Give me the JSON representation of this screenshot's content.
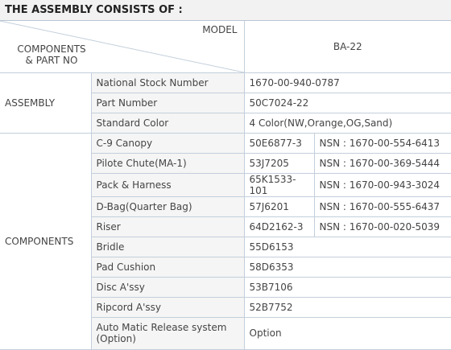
{
  "header": {
    "title": "THE ASSEMBLY CONSISTS OF :"
  },
  "table": {
    "model_label": "MODEL",
    "components_label": "COMPONENTS",
    "part_no_label": "& PART NO",
    "model": "BA-22",
    "groups": [
      {
        "name": "ASSEMBLY",
        "rows": [
          {
            "item": "National Stock Number",
            "value": "1670-00-940-0787"
          },
          {
            "item": "Part Number",
            "value": "50C7024-22"
          },
          {
            "item": "Standard Color",
            "value": "4 Color(NW,Orange,OG,Sand)"
          }
        ]
      },
      {
        "name": "COMPONENTS",
        "rows": [
          {
            "item": "C-9 Canopy",
            "value": "50E6877-3",
            "nsn": "NSN : 1670-00-554-6413"
          },
          {
            "item": "Pilote Chute(MA-1)",
            "value": "53J7205",
            "nsn": "NSN : 1670-00-369-5444"
          },
          {
            "item": "Pack & Harness",
            "value": "65K1533-101",
            "nsn": "NSN : 1670-00-943-3024"
          },
          {
            "item": "D-Bag(Quarter Bag)",
            "value": "57J6201",
            "nsn": "NSN : 1670-00-555-6437"
          },
          {
            "item": "Riser",
            "value": "64D2162-3",
            "nsn": "NSN : 1670-00-020-5039"
          },
          {
            "item": "Bridle",
            "value": "55D6153"
          },
          {
            "item": "Pad Cushion",
            "value": "58D6353"
          },
          {
            "item": "Disc A'ssy",
            "value": "53B7106"
          },
          {
            "item": "Ripcord A'ssy",
            "value": "52B7752"
          },
          {
            "item": "Auto Matic Release system (Option)",
            "value": "Option"
          }
        ]
      }
    ]
  }
}
